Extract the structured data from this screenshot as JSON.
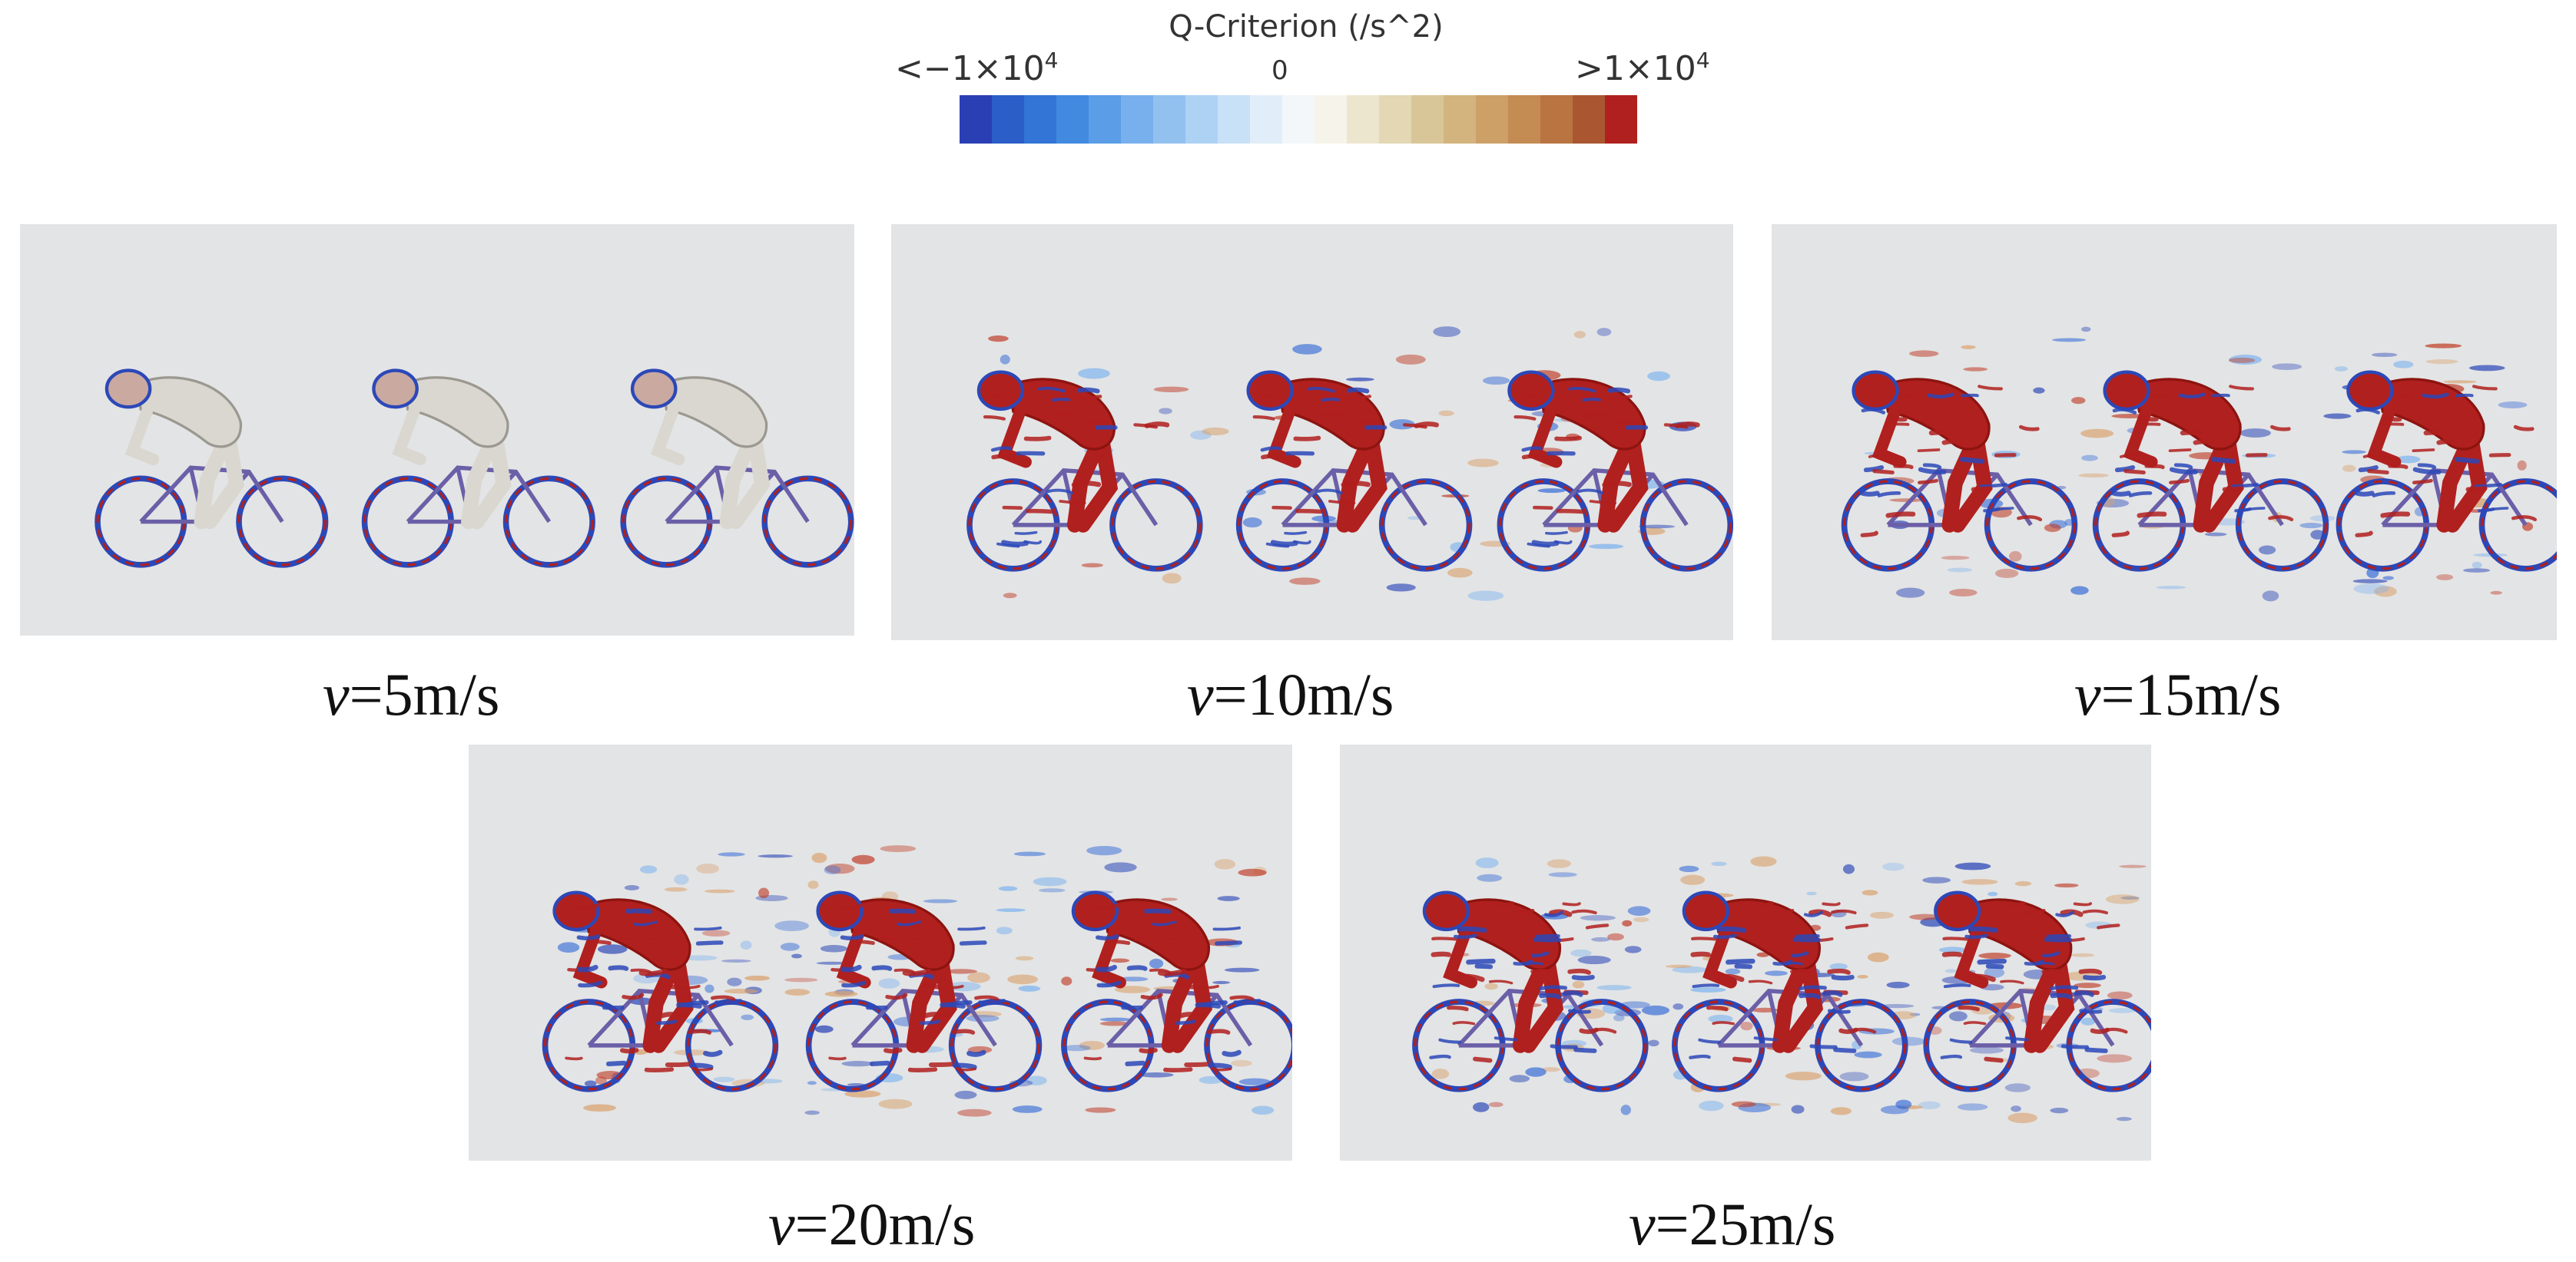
{
  "colorbar": {
    "title": "Q-Criterion (/s^2)",
    "min_prefix": "<",
    "min_label": "−1×10",
    "min_exp": "4",
    "mid_label": "0",
    "max_prefix": ">",
    "max_label": "1×10",
    "max_exp": "4",
    "colors": [
      "#2a3fb4",
      "#2c5ec8",
      "#3275d6",
      "#418ae0",
      "#5b9de7",
      "#77b0ec",
      "#92c1f0",
      "#add2f4",
      "#c8e1f7",
      "#e1eefa",
      "#f3f7fa",
      "#f6f4ea",
      "#ede6cf",
      "#e3d7b4",
      "#d9c698",
      "#d3b47f",
      "#cca067",
      "#c48b53",
      "#b97441",
      "#aa5731",
      "#b0201e"
    ]
  },
  "panels": [
    {
      "id": "v5",
      "var": "v",
      "label": "=5m/s",
      "intensity": 0.15
    },
    {
      "id": "v10",
      "var": "v",
      "label": "=10m/s",
      "intensity": 0.6
    },
    {
      "id": "v15",
      "var": "v",
      "label": "=15m/s",
      "intensity": 0.75
    },
    {
      "id": "v20",
      "var": "v",
      "label": "=20m/s",
      "intensity": 0.9
    },
    {
      "id": "v25",
      "var": "v",
      "label": "=25m/s",
      "intensity": 1.0
    }
  ]
}
